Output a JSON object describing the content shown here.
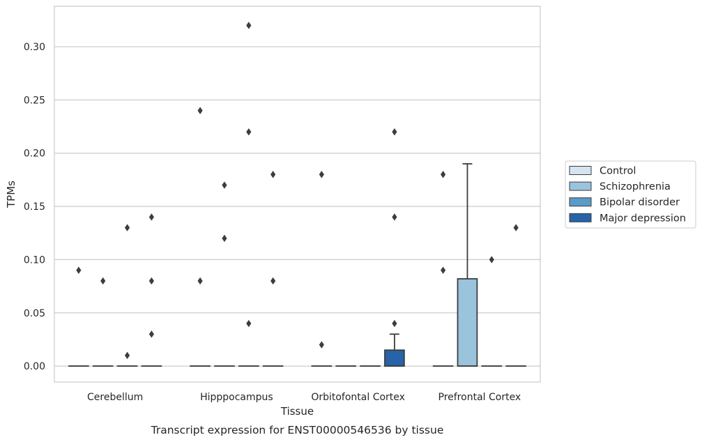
{
  "chart_data": {
    "type": "box",
    "caption": "Transcript expression for ENST00000546536 by tissue",
    "xlabel": "Tissue",
    "ylabel": "TPMs",
    "ylim": [
      -0.015,
      0.338
    ],
    "yticks": [
      "0.00",
      "0.05",
      "0.10",
      "0.15",
      "0.20",
      "0.25",
      "0.30"
    ],
    "grid": "horizontal",
    "legend_position": "right",
    "categories": [
      "Cerebellum",
      "Hipppocampus",
      "Orbitofontal Cortex",
      "Prefrontal Cortex"
    ],
    "series": [
      {
        "name": "Control",
        "color": "#d6e4f0"
      },
      {
        "name": "Schizophrenia",
        "color": "#9ac3dc"
      },
      {
        "name": "Bipolar disorder",
        "color": "#5a9bc9"
      },
      {
        "name": "Major depression",
        "color": "#2763a8"
      }
    ],
    "boxes": [
      {
        "category": "Cerebellum",
        "series": "Control",
        "q1": 0,
        "median": 0,
        "q3": 0,
        "whisker_low": 0,
        "whisker_high": 0,
        "outliers": [
          0.09
        ]
      },
      {
        "category": "Cerebellum",
        "series": "Schizophrenia",
        "q1": 0,
        "median": 0,
        "q3": 0,
        "whisker_low": 0,
        "whisker_high": 0,
        "outliers": [
          0.08
        ]
      },
      {
        "category": "Cerebellum",
        "series": "Bipolar disorder",
        "q1": 0,
        "median": 0,
        "q3": 0,
        "whisker_low": 0,
        "whisker_high": 0,
        "outliers": [
          0.13,
          0.01
        ]
      },
      {
        "category": "Cerebellum",
        "series": "Major depression",
        "q1": 0,
        "median": 0,
        "q3": 0,
        "whisker_low": 0,
        "whisker_high": 0,
        "outliers": [
          0.14,
          0.08,
          0.03
        ]
      },
      {
        "category": "Hipppocampus",
        "series": "Control",
        "q1": 0,
        "median": 0,
        "q3": 0,
        "whisker_low": 0,
        "whisker_high": 0,
        "outliers": [
          0.24,
          0.08
        ]
      },
      {
        "category": "Hipppocampus",
        "series": "Schizophrenia",
        "q1": 0,
        "median": 0,
        "q3": 0,
        "whisker_low": 0,
        "whisker_high": 0,
        "outliers": [
          0.17,
          0.12
        ]
      },
      {
        "category": "Hipppocampus",
        "series": "Bipolar disorder",
        "q1": 0,
        "median": 0,
        "q3": 0,
        "whisker_low": 0,
        "whisker_high": 0,
        "outliers": [
          0.32,
          0.22,
          0.04
        ]
      },
      {
        "category": "Hipppocampus",
        "series": "Major depression",
        "q1": 0,
        "median": 0,
        "q3": 0,
        "whisker_low": 0,
        "whisker_high": 0,
        "outliers": [
          0.18,
          0.08
        ]
      },
      {
        "category": "Orbitofontal Cortex",
        "series": "Control",
        "q1": 0,
        "median": 0,
        "q3": 0,
        "whisker_low": 0,
        "whisker_high": 0,
        "outliers": [
          0.18,
          0.02
        ]
      },
      {
        "category": "Orbitofontal Cortex",
        "series": "Schizophrenia",
        "q1": 0,
        "median": 0,
        "q3": 0,
        "whisker_low": 0,
        "whisker_high": 0,
        "outliers": []
      },
      {
        "category": "Orbitofontal Cortex",
        "series": "Bipolar disorder",
        "q1": 0,
        "median": 0,
        "q3": 0,
        "whisker_low": 0,
        "whisker_high": 0,
        "outliers": []
      },
      {
        "category": "Orbitofontal Cortex",
        "series": "Major depression",
        "q1": 0,
        "median": 0,
        "q3": 0.015,
        "whisker_low": 0,
        "whisker_high": 0.03,
        "outliers": [
          0.22,
          0.14,
          0.04
        ]
      },
      {
        "category": "Prefrontal Cortex",
        "series": "Control",
        "q1": 0,
        "median": 0,
        "q3": 0,
        "whisker_low": 0,
        "whisker_high": 0,
        "outliers": [
          0.18,
          0.09
        ]
      },
      {
        "category": "Prefrontal Cortex",
        "series": "Schizophrenia",
        "q1": 0,
        "median": 0,
        "q3": 0.082,
        "whisker_low": 0,
        "whisker_high": 0.19,
        "outliers": []
      },
      {
        "category": "Prefrontal Cortex",
        "series": "Bipolar disorder",
        "q1": 0,
        "median": 0,
        "q3": 0,
        "whisker_low": 0,
        "whisker_high": 0,
        "outliers": [
          0.1
        ]
      },
      {
        "category": "Prefrontal Cortex",
        "series": "Major depression",
        "q1": 0,
        "median": 0,
        "q3": 0,
        "whisker_low": 0,
        "whisker_high": 0,
        "outliers": [
          0.13
        ]
      }
    ]
  }
}
